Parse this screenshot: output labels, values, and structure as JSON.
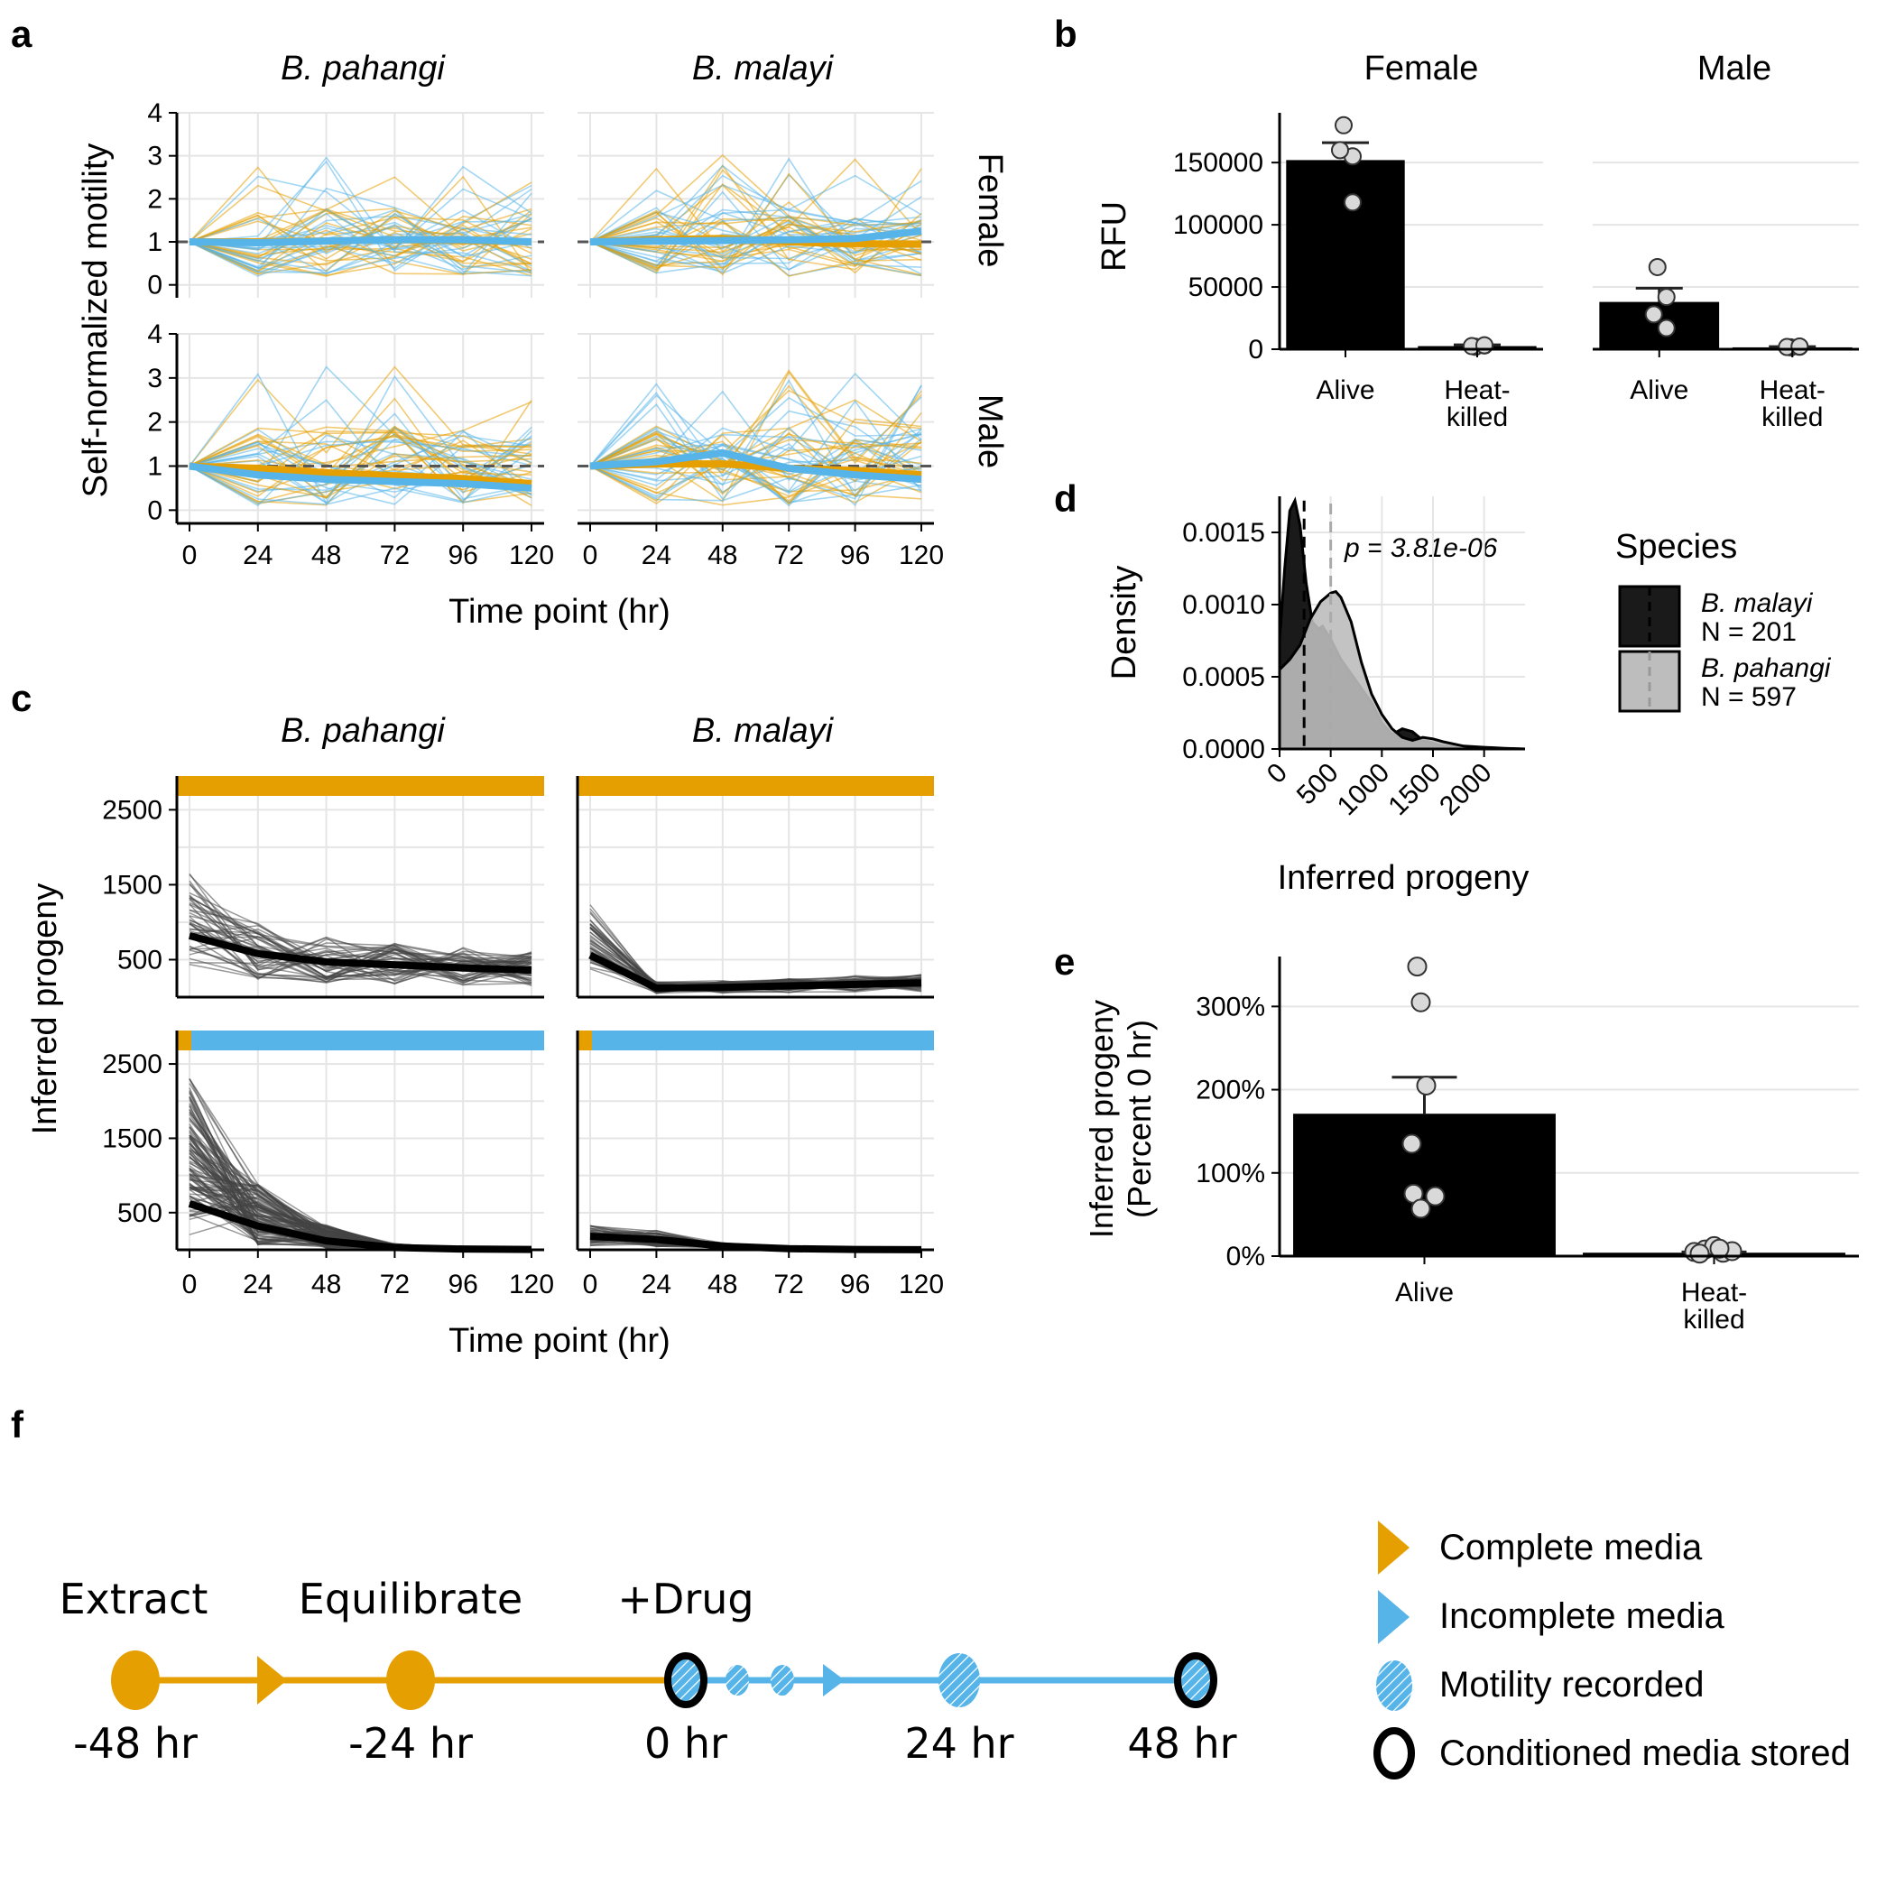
{
  "colors": {
    "orange": "#E69F00",
    "blue": "#56B4E9",
    "grid": "#E5E5E5",
    "dark_fill": "#1a1a1a",
    "light_fill": "#BDBDBD"
  },
  "panel_letters": [
    "a",
    "b",
    "c",
    "d",
    "e",
    "f"
  ],
  "chart_data": [
    {
      "id": "a",
      "type": "line",
      "ylabel": "Self-normalized  motility",
      "xlabel": "Time point (hr)",
      "x": [
        0,
        24,
        48,
        72,
        96,
        120
      ],
      "x_ticks": [
        "0",
        "24",
        "48",
        "72",
        "96",
        "120"
      ],
      "y_ticks": [
        "0",
        "1",
        "2",
        "3",
        "4"
      ],
      "ylim": [
        -0.3,
        4
      ],
      "columns": [
        "B. pahangi",
        "B. malayi"
      ],
      "rows": [
        "Female",
        "Male"
      ],
      "reference_line": 1,
      "facets": [
        {
          "col": 0,
          "row": 0,
          "mean_orange": [
            1,
            1.0,
            1.02,
            1.05,
            1.03,
            1.0
          ],
          "mean_blue": [
            1,
            0.98,
            1.02,
            1.05,
            1.05,
            1.0
          ]
        },
        {
          "col": 1,
          "row": 0,
          "mean_orange": [
            1,
            1.05,
            1.08,
            1.0,
            0.95,
            0.95
          ],
          "mean_blue": [
            1,
            1.02,
            1.03,
            1.05,
            1.08,
            1.25
          ]
        },
        {
          "col": 0,
          "row": 1,
          "mean_orange": [
            1,
            0.95,
            0.85,
            0.78,
            0.72,
            0.6
          ],
          "mean_blue": [
            1,
            0.8,
            0.7,
            0.65,
            0.6,
            0.5
          ]
        },
        {
          "col": 1,
          "row": 1,
          "mean_orange": [
            1,
            1.05,
            1.05,
            0.95,
            0.9,
            0.8
          ],
          "mean_blue": [
            1,
            1.1,
            1.3,
            0.95,
            0.8,
            0.7
          ]
        }
      ]
    },
    {
      "id": "b",
      "type": "bar",
      "ylabel": "RFU",
      "y_ticks": [
        "0",
        "50000",
        "100000",
        "150000"
      ],
      "ylim": [
        0,
        190000
      ],
      "groups": [
        {
          "name": "Female",
          "categories": [
            "Alive",
            "Heat-\nkilled"
          ],
          "values": [
            152000,
            2500
          ],
          "errors": [
            14000,
            1000
          ],
          "points": [
            [
              180000,
              155000,
              160000,
              118000
            ],
            [
              2000,
              3000,
              2500,
              3200
            ]
          ]
        },
        {
          "name": "Male",
          "categories": [
            "Alive",
            "Heat-\nkilled"
          ],
          "values": [
            38000,
            1500
          ],
          "errors": [
            11000,
            600
          ],
          "points": [
            [
              66000,
              42000,
              28000,
              17000
            ],
            [
              1500,
              2000,
              1800,
              2200
            ]
          ]
        }
      ]
    },
    {
      "id": "c",
      "type": "line",
      "ylabel": "Inferred progeny",
      "xlabel": "Time point (hr)",
      "x": [
        0,
        24,
        48,
        72,
        96,
        120
      ],
      "x_ticks": [
        "0",
        "24",
        "48",
        "72",
        "96",
        "120"
      ],
      "y_ticks": [
        "500",
        "1500",
        "2500"
      ],
      "ylim": [
        0,
        2950
      ],
      "columns": [
        "B. pahangi",
        "B. malayi"
      ],
      "facets": [
        {
          "col": 0,
          "row": 0,
          "mean": [
            820,
            580,
            470,
            430,
            390,
            360
          ]
        },
        {
          "col": 1,
          "row": 0,
          "mean": [
            560,
            120,
            130,
            150,
            170,
            190
          ]
        },
        {
          "col": 0,
          "row": 1,
          "mean": [
            620,
            320,
            120,
            30,
            10,
            5
          ]
        },
        {
          "col": 1,
          "row": 1,
          "mean": [
            180,
            140,
            50,
            15,
            5,
            2
          ]
        }
      ]
    },
    {
      "id": "d",
      "type": "area",
      "ylabel": "Density",
      "xlabel": "Inferred progeny",
      "x_ticks": [
        "0",
        "500",
        "1000",
        "1500",
        "2000"
      ],
      "y_ticks": [
        "0.0000",
        "0.0005",
        "0.0010",
        "0.0015"
      ],
      "xlim": [
        0,
        2400
      ],
      "ylim": [
        0,
        0.00175
      ],
      "annotation": "p = 3.81e-06",
      "legend_title": "Species",
      "series": [
        {
          "name": "B. malayi",
          "n": "N = 201",
          "medianx": 240,
          "x": [
            0,
            50,
            100,
            150,
            200,
            260,
            320,
            380,
            420,
            500,
            600,
            700,
            800,
            900,
            1000,
            1100,
            1200,
            1300,
            1400,
            1500,
            1600,
            1800,
            2000,
            2400
          ],
          "y": [
            0.00075,
            0.00125,
            0.00165,
            0.00172,
            0.00155,
            0.00115,
            0.00088,
            0.00083,
            0.00085,
            0.00076,
            0.00062,
            0.00052,
            0.00042,
            0.00032,
            0.00018,
            0.0001,
            0.00014,
            0.00012,
            6e-05,
            4e-05,
            2e-05,
            1e-05,
            5e-06,
            0
          ]
        },
        {
          "name": "B. pahangi",
          "n": "N = 597",
          "medianx": 500,
          "x": [
            0,
            100,
            200,
            300,
            400,
            500,
            550,
            600,
            700,
            800,
            900,
            1000,
            1100,
            1200,
            1300,
            1400,
            1500,
            1600,
            1800,
            2000,
            2200,
            2400
          ],
          "y": [
            0.00055,
            0.00062,
            0.00072,
            0.0009,
            0.00102,
            0.00108,
            0.00109,
            0.00105,
            0.00088,
            0.0006,
            0.00038,
            0.00024,
            0.00014,
            8e-05,
            6e-05,
            8e-05,
            7e-05,
            5e-05,
            2e-05,
            1.2e-05,
            5e-06,
            0
          ]
        }
      ]
    },
    {
      "id": "e",
      "type": "bar",
      "ylabel": "Inferred progeny",
      "ylabel2": "(Percent 0 hr)",
      "y_ticks": [
        "0%",
        "100%",
        "200%",
        "300%"
      ],
      "ylim": [
        0,
        360
      ],
      "categories": [
        "Alive",
        "Heat-\nkilled"
      ],
      "values": [
        170,
        3
      ],
      "errors": [
        45,
        2
      ],
      "points": [
        [
          348,
          305,
          205,
          135,
          75,
          72,
          57
        ],
        [
          5,
          8,
          12,
          4,
          6,
          3,
          9
        ]
      ]
    }
  ],
  "timeline": {
    "top_labels": [
      "Extract",
      "Equilibrate",
      "+Drug"
    ],
    "bottom_labels": [
      "-48 hr",
      "-24 hr",
      "0 hr",
      "24 hr",
      "48 hr"
    ],
    "legend": [
      "Complete media",
      "Incomplete media",
      "Motility recorded",
      "Conditioned media stored"
    ]
  }
}
